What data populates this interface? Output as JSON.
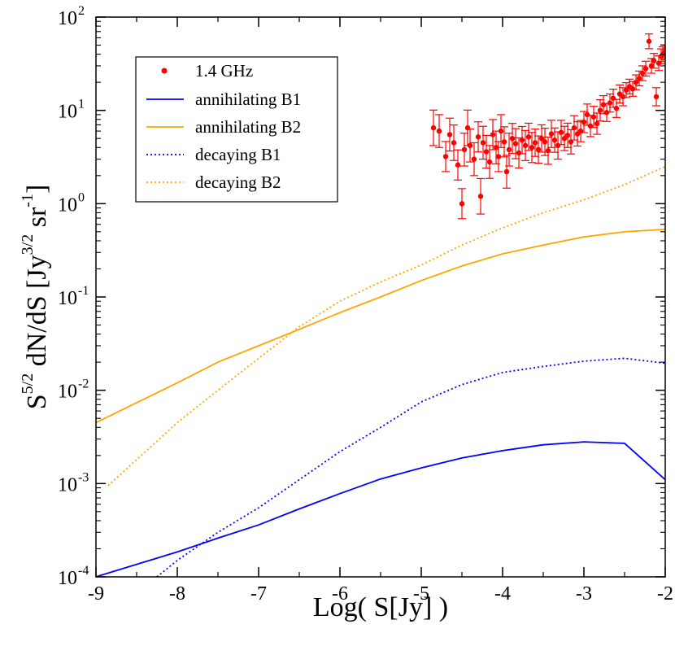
{
  "chart_data": {
    "type": "line",
    "x_axis": {
      "label": "Log( S[Jy] )",
      "range": [
        -9,
        -2
      ],
      "ticks": [
        -9,
        -8,
        -7,
        -6,
        -5,
        -4,
        -3,
        -2
      ],
      "tick_labels": [
        "-9",
        "-8",
        "-7",
        "-6",
        "-5",
        "-4",
        "-3",
        "-2"
      ]
    },
    "y_axis": {
      "scale": "log",
      "label_base": "S",
      "label_sup1": "5/2",
      "label_mid": " dN/dS  [Jy",
      "label_sup2": "3/2",
      "label_mid2": " sr",
      "label_sup3": "-1",
      "label_end": "]",
      "range_log10": [
        -4,
        2
      ],
      "tick_exponents": [
        -4,
        -3,
        -2,
        -1,
        0,
        1,
        2
      ],
      "tick_base": "10",
      "tick_exponent_labels": [
        "-4",
        "-3",
        "-2",
        "-1",
        "0",
        "1",
        "2"
      ]
    },
    "legend": {
      "position": "top-left",
      "entries": [
        {
          "label": "1.4 GHz",
          "color": "#ff0000",
          "style": "marker"
        },
        {
          "label": "annihilating B1",
          "color": "#0000ff",
          "style": "solid"
        },
        {
          "label": "annihilating B2",
          "color": "#ffa500",
          "style": "solid"
        },
        {
          "label": "decaying B1",
          "color": "#0000ff",
          "style": "dotted"
        },
        {
          "label": "decaying B2",
          "color": "#ffa500",
          "style": "dotted"
        }
      ]
    },
    "series": [
      {
        "name": "annihilating B1",
        "color": "#0000ff",
        "style": "solid",
        "x": [
          -9,
          -8,
          -7.5,
          -7,
          -6.5,
          -6,
          -5.5,
          -5,
          -4.5,
          -4,
          -3.5,
          -3,
          -2.5,
          -2
        ],
        "y": [
          0.0001,
          0.000185,
          0.00026,
          0.00036,
          0.000535,
          0.00078,
          0.00112,
          0.00147,
          0.00188,
          0.00225,
          0.0026,
          0.0028,
          0.0027,
          0.0011
        ]
      },
      {
        "name": "annihilating B2",
        "color": "#ffa500",
        "style": "solid",
        "x": [
          -9,
          -8,
          -7.5,
          -7,
          -6.5,
          -6,
          -5.5,
          -5,
          -4.5,
          -4,
          -3.5,
          -3,
          -2.5,
          -2
        ],
        "y": [
          0.0045,
          0.012,
          0.02,
          0.03,
          0.045,
          0.068,
          0.1,
          0.15,
          0.215,
          0.29,
          0.36,
          0.44,
          0.5,
          0.53
        ]
      },
      {
        "name": "decaying B1",
        "color": "#0000ff",
        "style": "dotted",
        "x": [
          -8.25,
          -8,
          -7.5,
          -7,
          -6.5,
          -6,
          -5.5,
          -5,
          -4.5,
          -4,
          -3.5,
          -3,
          -2.5,
          -2
        ],
        "y": [
          0.0001,
          0.00015,
          0.0003,
          0.00055,
          0.0011,
          0.0022,
          0.004,
          0.0075,
          0.0115,
          0.0155,
          0.018,
          0.0205,
          0.022,
          0.0195
        ]
      },
      {
        "name": "decaying B2",
        "color": "#ffa500",
        "style": "dotted",
        "x": [
          -8.85,
          -8,
          -7.5,
          -7,
          -6.5,
          -6,
          -5.5,
          -5,
          -4.5,
          -4,
          -3.5,
          -3,
          -2.5,
          -2
        ],
        "y": [
          0.00095,
          0.0045,
          0.01,
          0.022,
          0.048,
          0.09,
          0.145,
          0.22,
          0.36,
          0.55,
          0.8,
          1.1,
          1.6,
          2.5
        ]
      }
    ],
    "scatter_series": {
      "name": "1.4 GHz",
      "color": "#ff0000",
      "x": [
        -4.85,
        -4.78,
        -4.7,
        -4.65,
        -4.6,
        -4.55,
        -4.5,
        -4.47,
        -4.43,
        -4.4,
        -4.35,
        -4.3,
        -4.27,
        -4.24,
        -4.2,
        -4.16,
        -4.12,
        -4.08,
        -4.05,
        -4.02,
        -3.98,
        -3.95,
        -3.92,
        -3.88,
        -3.84,
        -3.8,
        -3.76,
        -3.72,
        -3.68,
        -3.64,
        -3.6,
        -3.56,
        -3.52,
        -3.48,
        -3.44,
        -3.4,
        -3.36,
        -3.32,
        -3.28,
        -3.24,
        -3.2,
        -3.16,
        -3.12,
        -3.08,
        -3.04,
        -3.0,
        -2.96,
        -2.92,
        -2.88,
        -2.84,
        -2.8,
        -2.76,
        -2.72,
        -2.68,
        -2.64,
        -2.6,
        -2.56,
        -2.52,
        -2.48,
        -2.44,
        -2.4,
        -2.36,
        -2.32,
        -2.28,
        -2.24,
        -2.2,
        -2.17,
        -2.14,
        -2.11,
        -2.08,
        -2.05,
        -2.03,
        -2.01
      ],
      "y": [
        6.5,
        6.0,
        3.2,
        5.5,
        4.5,
        2.6,
        1.0,
        3.8,
        6.5,
        4.2,
        3.0,
        5.2,
        1.2,
        4.5,
        3.6,
        2.8,
        5.5,
        4.0,
        3.2,
        6.0,
        4.6,
        2.2,
        3.8,
        5.0,
        4.4,
        3.5,
        4.8,
        4.2,
        5.2,
        4.0,
        4.5,
        3.8,
        5.0,
        4.6,
        3.7,
        5.6,
        4.8,
        4.2,
        5.8,
        5.0,
        5.4,
        4.6,
        6.5,
        5.6,
        6.0,
        7.5,
        9.0,
        6.8,
        8.5,
        7.2,
        10.0,
        11.5,
        9.5,
        12.0,
        13.5,
        10.5,
        15.0,
        14.0,
        16.5,
        18.0,
        17.0,
        20.0,
        22.0,
        25.0,
        28.0,
        55.0,
        30.0,
        34.0,
        14.0,
        32.0,
        38.0,
        40.0,
        42.0
      ],
      "err_factor": [
        1.55,
        1.5,
        1.45,
        1.5,
        1.55,
        1.45,
        1.45,
        1.5,
        1.55,
        1.5,
        1.5,
        1.45,
        1.55,
        1.5,
        1.5,
        1.5,
        1.45,
        1.5,
        1.45,
        1.5,
        1.45,
        1.5,
        1.5,
        1.45,
        1.45,
        1.45,
        1.4,
        1.45,
        1.4,
        1.45,
        1.4,
        1.4,
        1.4,
        1.4,
        1.4,
        1.4,
        1.35,
        1.4,
        1.35,
        1.35,
        1.35,
        1.35,
        1.35,
        1.35,
        1.3,
        1.3,
        1.3,
        1.3,
        1.3,
        1.3,
        1.3,
        1.25,
        1.25,
        1.25,
        1.25,
        1.25,
        1.25,
        1.25,
        1.2,
        1.2,
        1.2,
        1.2,
        1.2,
        1.2,
        1.2,
        1.2,
        1.2,
        1.2,
        1.25,
        1.2,
        1.2,
        1.2,
        1.2
      ]
    }
  }
}
